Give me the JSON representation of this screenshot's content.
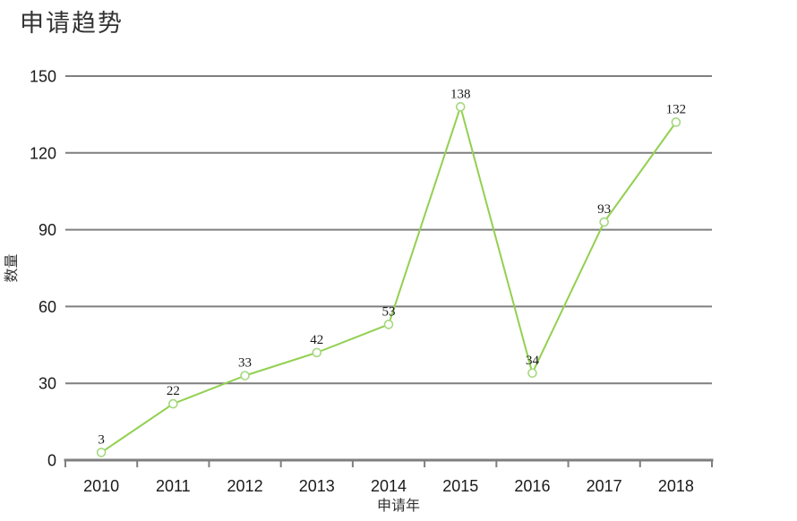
{
  "title": "申请趋势",
  "chart_data": {
    "type": "line",
    "title": "申请趋势",
    "categories": [
      "2010",
      "2011",
      "2012",
      "2013",
      "2014",
      "2015",
      "2016",
      "2017",
      "2018"
    ],
    "values": [
      3,
      22,
      33,
      42,
      53,
      138,
      34,
      93,
      132
    ],
    "xlabel": "申请年",
    "ylabel": "数量",
    "ylim": [
      0,
      150
    ],
    "yticks": [
      0,
      30,
      60,
      90,
      120,
      150
    ],
    "grid": true,
    "legend_position": "none",
    "data_labels": true,
    "colors": {
      "line": "#92d050",
      "marker_stroke": "#a5d880",
      "marker_fill": "#ffffff",
      "gridline": "#7f7f7f",
      "axis": "#7f7f7f",
      "tick_label": "#1a1a1a",
      "data_label": "#1a1a1a",
      "axis_title": "#333333"
    }
  }
}
